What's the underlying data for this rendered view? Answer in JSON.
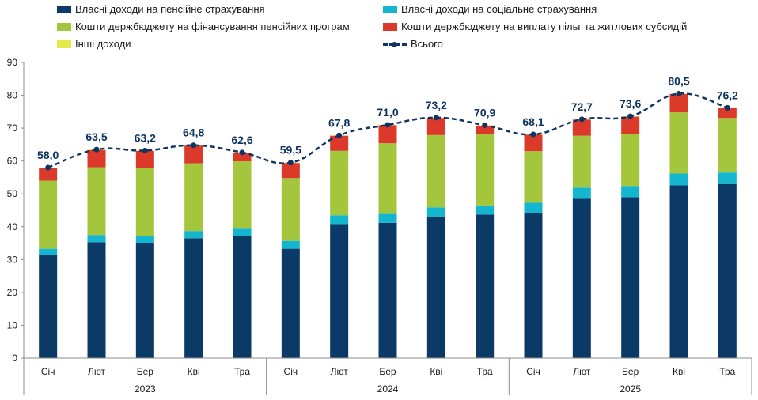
{
  "chart_data": {
    "type": "bar",
    "stacked": true,
    "ylim": [
      0,
      90
    ],
    "yticks": [
      0,
      10,
      20,
      30,
      40,
      50,
      60,
      70,
      80,
      90
    ],
    "categories": [
      "Січ",
      "Лют",
      "Бер",
      "Кві",
      "Тра",
      "Січ",
      "Лют",
      "Бер",
      "Кві",
      "Тра",
      "Січ",
      "Лют",
      "Бер",
      "Кві",
      "Тра"
    ],
    "groups": [
      {
        "label": "2023",
        "start": 0,
        "end": 4
      },
      {
        "label": "2024",
        "start": 5,
        "end": 9
      },
      {
        "label": "2025",
        "start": 10,
        "end": 14
      }
    ],
    "series": [
      {
        "name": "Власні доходи на пенсійне страхування",
        "color": "#0b3a66",
        "values": [
          31.3,
          35.3,
          35.0,
          36.5,
          37.1,
          33.3,
          40.8,
          41.2,
          43.0,
          43.7,
          44.2,
          48.5,
          49.0,
          52.6,
          53.0
        ]
      },
      {
        "name": "Власні доходи на соціальне страхування",
        "color": "#14b6cf",
        "values": [
          2.0,
          2.2,
          2.2,
          2.2,
          2.3,
          2.4,
          2.7,
          2.7,
          2.9,
          2.8,
          3.1,
          3.4,
          3.4,
          3.6,
          3.5
        ]
      },
      {
        "name": "Кошти держбюджету на фінансування пенсійних програм",
        "color": "#a4c63c",
        "values": [
          20.7,
          20.6,
          20.7,
          20.6,
          20.5,
          19.1,
          19.6,
          21.5,
          22.0,
          21.6,
          15.7,
          15.8,
          15.9,
          18.6,
          16.6
        ]
      },
      {
        "name": "Кошти держбюджету на виплату пільг та житлових субсидій",
        "color": "#db3a2a",
        "values": [
          3.9,
          5.2,
          5.2,
          5.4,
          2.6,
          4.6,
          4.6,
          5.5,
          5.2,
          2.7,
          5.0,
          4.9,
          5.2,
          5.6,
          3.0
        ]
      },
      {
        "name": "Інші доходи",
        "color": "#e5e84a",
        "values": [
          0.1,
          0.2,
          0.1,
          0.1,
          0.1,
          0.1,
          0.1,
          0.1,
          0.1,
          0.1,
          0.1,
          0.1,
          0.1,
          0.1,
          0.1
        ]
      }
    ],
    "total": {
      "name": "Всього",
      "color": "#0f3460",
      "values": [
        58.0,
        63.5,
        63.2,
        64.8,
        62.6,
        59.5,
        67.8,
        71.0,
        73.2,
        70.9,
        68.1,
        72.7,
        73.6,
        80.5,
        76.2
      ],
      "labels": [
        "58,0",
        "63,5",
        "63,2",
        "64,8",
        "62,6",
        "59,5",
        "67,8",
        "71,0",
        "73,2",
        "70,9",
        "68,1",
        "72,7",
        "73,6",
        "80,5",
        "76,2"
      ]
    }
  }
}
